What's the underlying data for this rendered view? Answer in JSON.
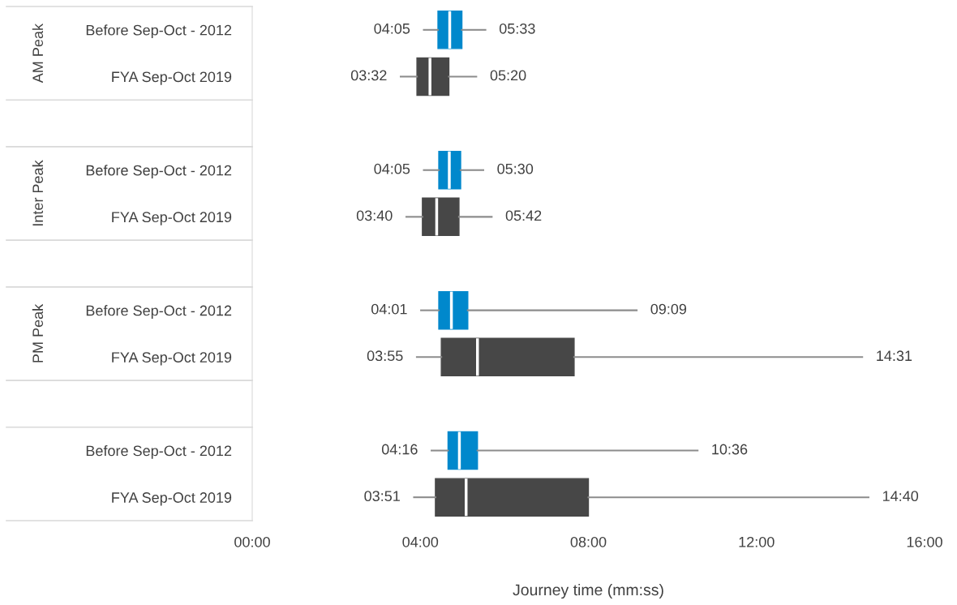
{
  "chart_data": {
    "type": "box",
    "orientation": "horizontal",
    "categories": [
      "Before Sep-Oct - 2012",
      "FYA Sep-Oct 2019",
      null,
      "Before Sep-Oct - 2012",
      "FYA Sep-Oct 2019",
      null,
      "Before Sep-Oct - 2012",
      "FYA Sep-Oct 2019",
      null,
      "Before Sep-Oct - 2012",
      "FYA Sep-Oct 2019"
    ],
    "xlabel": "Journey time (mm:ss)",
    "xlim": [
      0,
      16
    ],
    "xticks": [
      {
        "value": 0,
        "label": "00:00"
      },
      {
        "value": 4,
        "label": "04:00"
      },
      {
        "value": 8,
        "label": "08:00"
      },
      {
        "value": 12,
        "label": "12:00"
      },
      {
        "value": 16,
        "label": "16:00"
      }
    ],
    "annotations": [
      "AM Peak",
      "Inter Peak",
      "PM Peak"
    ],
    "colors": [
      "#0088cc",
      "#474747",
      null,
      "#0088cc",
      "#474747",
      null,
      "#0088cc",
      "#474747",
      null,
      "#0088cc",
      "#474747"
    ],
    "boxes": [
      {
        "low": 4.083,
        "q1": 4.42,
        "median": 4.7,
        "q3": 4.99,
        "high": 5.55
      },
      {
        "low": 3.533,
        "q1": 3.92,
        "median": 4.23,
        "q3": 4.68,
        "high": 5.333
      },
      null,
      {
        "low": 4.083,
        "q1": 4.44,
        "median": 4.69,
        "q3": 4.96,
        "high": 5.5
      },
      {
        "low": 3.667,
        "q1": 4.05,
        "median": 4.39,
        "q3": 4.92,
        "high": 5.7
      },
      null,
      {
        "low": 4.017,
        "q1": 4.44,
        "median": 4.74,
        "q3": 5.13,
        "high": 9.15
      },
      {
        "low": 3.917,
        "q1": 4.5,
        "median": 5.36,
        "q3": 7.66,
        "high": 14.517
      },
      null,
      {
        "low": 4.267,
        "q1": 4.66,
        "median": 4.93,
        "q3": 5.36,
        "high": 10.6
      },
      {
        "low": 3.85,
        "q1": 4.36,
        "median": 5.09,
        "q3": 8.0,
        "high": 14.667
      }
    ],
    "value_labels": [
      [
        "04:05",
        "05:33"
      ],
      [
        "03:32",
        "05:20"
      ],
      null,
      [
        "04:05",
        "05:30"
      ],
      [
        "03:40",
        "05:42"
      ],
      null,
      [
        "04:01",
        "09:09"
      ],
      [
        "03:55",
        "14:31"
      ],
      null,
      [
        "04:16",
        "10:36"
      ],
      [
        "03:51",
        "14:40"
      ]
    ]
  }
}
